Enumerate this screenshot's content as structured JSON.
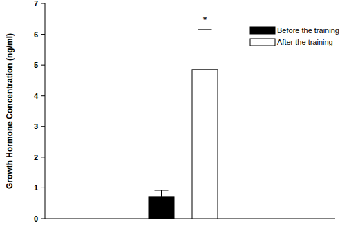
{
  "chart_data": {
    "type": "bar",
    "y_label": "Growth Hormone Concentration (ng/ml)",
    "categories": [
      null
    ],
    "series": [
      {
        "name": "Before the training",
        "color": "#000000",
        "values": [
          0.72
        ],
        "errors": [
          0.2
        ]
      },
      {
        "name": "After the training",
        "color": "#ffffff",
        "values": [
          4.85
        ],
        "errors": [
          1.3
        ],
        "annotation": "*"
      }
    ],
    "ylim": [
      0,
      7
    ],
    "yticks": [
      0,
      1,
      2,
      3,
      4,
      5,
      6,
      7
    ],
    "grid": false,
    "legend": "upper right",
    "tick_labels": "y"
  }
}
